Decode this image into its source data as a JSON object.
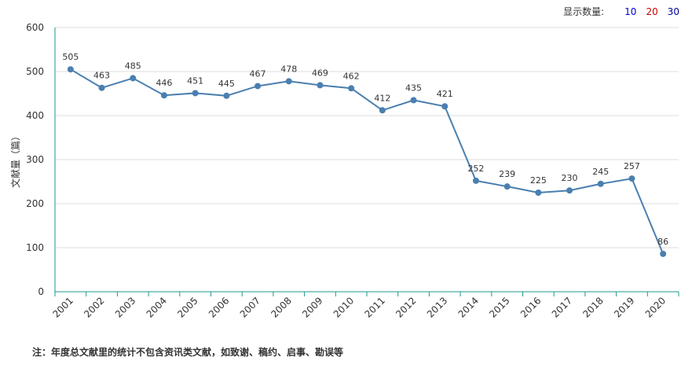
{
  "topbar": {
    "label": "显示数量:",
    "options": [
      {
        "text": "10",
        "color": "#0000cc"
      },
      {
        "text": "20",
        "color": "#cc0000"
      },
      {
        "text": "30",
        "color": "#000099"
      }
    ]
  },
  "footnote": "注：年度总文献里的统计不包含资讯类文献，如致谢、稿约、启事、勘误等",
  "colors": {
    "line": "#4a7fb0",
    "axis": "#1a9a8a",
    "grid": "#dddddd",
    "text": "#333333"
  },
  "chart_data": {
    "type": "line",
    "title": "",
    "xlabel": "",
    "ylabel": "文献量（篇）",
    "ylim": [
      0,
      600
    ],
    "yticks": [
      0,
      100,
      200,
      300,
      400,
      500,
      600
    ],
    "grid": true,
    "categories": [
      "2001",
      "2002",
      "2003",
      "2004",
      "2005",
      "2006",
      "2007",
      "2008",
      "2009",
      "2010",
      "2011",
      "2012",
      "2013",
      "2014",
      "2015",
      "2016",
      "2017",
      "2018",
      "2019",
      "2020"
    ],
    "series": [
      {
        "values": [
          505,
          463,
          485,
          446,
          451,
          445,
          467,
          478,
          469,
          462,
          412,
          435,
          421,
          252,
          239,
          225,
          230,
          245,
          257,
          86
        ]
      }
    ]
  }
}
